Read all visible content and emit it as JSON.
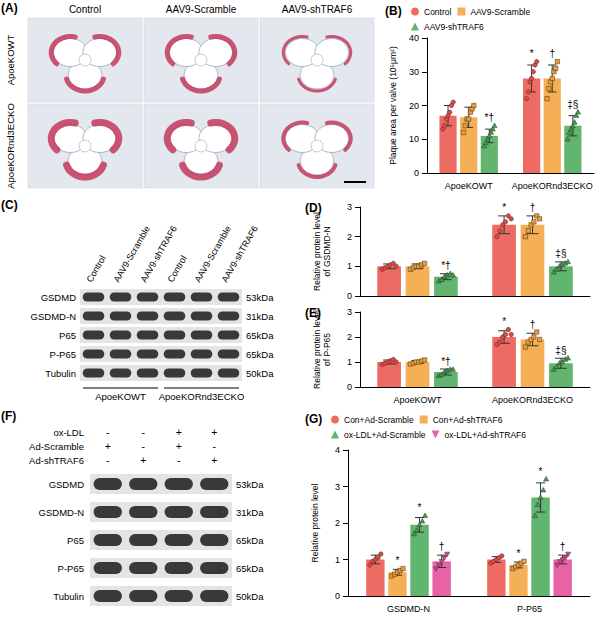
{
  "chart_data": [
    {
      "type": "bar",
      "title": "(B)",
      "y_label": "Plaque area per valve (10⁵μm²)",
      "categories": [
        "ApoeKOWT",
        "ApoeKORnd3ECKO"
      ],
      "series": [
        {
          "name": "Control",
          "color": "#e8463c",
          "marker": "circle",
          "values": [
            17,
            28
          ],
          "errors": [
            3,
            4
          ],
          "points": [
            [
              13,
              14,
              16,
              17,
              18,
              20,
              21
            ],
            [
              22,
              24,
              27,
              28,
              30,
              32,
              33
            ]
          ]
        },
        {
          "name": "AAV9-Scramble",
          "color": "#f39c2c",
          "marker": "square",
          "values": [
            16.5,
            28
          ],
          "errors": [
            3,
            4
          ],
          "points": [
            [
              12,
              14,
              16,
              16,
              18,
              19,
              20
            ],
            [
              22,
              25,
              27,
              28,
              30,
              31,
              33
            ]
          ]
        },
        {
          "name": "AAV9-shTRAF6",
          "color": "#3aa24a",
          "marker": "triangle",
          "values": [
            11,
            14
          ],
          "errors": [
            2,
            3
          ],
          "points": [
            [
              8,
              9,
              10,
              11,
              12,
              13,
              14
            ],
            [
              10,
              12,
              13,
              14,
              15,
              17,
              18
            ]
          ]
        }
      ],
      "annotations": [
        {
          "category": "ApoeKOWT",
          "series": "AAV9-shTRAF6",
          "text": "*†"
        },
        {
          "category": "ApoeKORnd3ECKO",
          "series": "Control",
          "text": "*"
        },
        {
          "category": "ApoeKORnd3ECKO",
          "series": "AAV9-Scramble",
          "text": "†"
        },
        {
          "category": "ApoeKORnd3ECKO",
          "series": "AAV9-shTRAF6",
          "text": "‡§"
        }
      ],
      "ylim": [
        0,
        40
      ],
      "yticks": [
        0,
        10,
        20,
        30,
        40
      ],
      "grid": false,
      "legend": "top"
    },
    {
      "type": "bar",
      "title": "(D)",
      "y_label": "Relative protein level\nof GSDMD-N",
      "categories": [
        "ApoeKOWT",
        "ApoeKORnd3ECKO"
      ],
      "series": [
        {
          "name": "Control",
          "color": "#e8463c",
          "marker": "circle",
          "values": [
            1.0,
            2.4
          ],
          "errors": [
            0.08,
            0.3
          ],
          "points": [
            [
              0.9,
              0.95,
              1.0,
              1.05,
              1.1,
              1.0
            ],
            [
              2.0,
              2.2,
              2.4,
              2.5,
              2.7,
              2.6
            ]
          ]
        },
        {
          "name": "AAV9-Scramble",
          "color": "#f39c2c",
          "marker": "square",
          "values": [
            1.0,
            2.4
          ],
          "errors": [
            0.08,
            0.3
          ],
          "points": [
            [
              0.9,
              0.95,
              1.0,
              1.0,
              1.05,
              1.1
            ],
            [
              2.0,
              2.2,
              2.4,
              2.5,
              2.7,
              2.6
            ]
          ]
        },
        {
          "name": "AAV9-shTRAF6",
          "color": "#3aa24a",
          "marker": "triangle",
          "values": [
            0.65,
            1.0
          ],
          "errors": [
            0.1,
            0.15
          ],
          "points": [
            [
              0.5,
              0.55,
              0.65,
              0.7,
              0.75,
              0.7
            ],
            [
              0.8,
              0.9,
              1.0,
              1.05,
              1.1,
              1.15
            ]
          ]
        }
      ],
      "annotations": [
        {
          "category": "ApoeKOWT",
          "series": "AAV9-shTRAF6",
          "text": "*†"
        },
        {
          "category": "ApoeKORnd3ECKO",
          "series": "Control",
          "text": "*"
        },
        {
          "category": "ApoeKORnd3ECKO",
          "series": "AAV9-Scramble",
          "text": "†"
        },
        {
          "category": "ApoeKORnd3ECKO",
          "series": "AAV9-shTRAF6",
          "text": "‡§"
        }
      ],
      "ylim": [
        0,
        3
      ],
      "yticks": [
        0,
        1,
        2,
        3
      ],
      "grid": false,
      "tick_labels": "y"
    },
    {
      "type": "bar",
      "title": "(E)",
      "y_label": "Relative protein level\nof P-P65",
      "categories": [
        "ApoeKOWT",
        "ApoeKORnd3ECKO"
      ],
      "series": [
        {
          "name": "Control",
          "color": "#e8463c",
          "marker": "circle",
          "values": [
            1.0,
            2.0
          ],
          "errors": [
            0.08,
            0.25
          ],
          "points": [
            [
              0.9,
              0.95,
              1.0,
              1.05,
              1.1,
              1.0
            ],
            [
              1.7,
              1.8,
              2.0,
              2.1,
              2.3,
              2.1
            ]
          ]
        },
        {
          "name": "AAV9-Scramble",
          "color": "#f39c2c",
          "marker": "square",
          "values": [
            1.0,
            1.9
          ],
          "errors": [
            0.06,
            0.25
          ],
          "points": [
            [
              0.92,
              0.96,
              1.0,
              1.0,
              1.04,
              1.08
            ],
            [
              1.6,
              1.8,
              1.9,
              2.0,
              2.2,
              1.9
            ]
          ]
        },
        {
          "name": "AAV9-shTRAF6",
          "color": "#3aa24a",
          "marker": "triangle",
          "values": [
            0.6,
            0.95
          ],
          "errors": [
            0.12,
            0.2
          ],
          "points": [
            [
              0.45,
              0.5,
              0.6,
              0.65,
              0.7,
              0.7
            ],
            [
              0.7,
              0.8,
              0.95,
              1.0,
              1.1,
              1.15
            ]
          ]
        }
      ],
      "annotations": [
        {
          "category": "ApoeKOWT",
          "series": "AAV9-shTRAF6",
          "text": "*†"
        },
        {
          "category": "ApoeKORnd3ECKO",
          "series": "Control",
          "text": "*"
        },
        {
          "category": "ApoeKORnd3ECKO",
          "series": "AAV9-Scramble",
          "text": "†"
        },
        {
          "category": "ApoeKORnd3ECKO",
          "series": "AAV9-shTRAF6",
          "text": "‡§"
        }
      ],
      "ylim": [
        0,
        3
      ],
      "yticks": [
        0,
        1,
        2,
        3
      ],
      "grid": false
    },
    {
      "type": "bar",
      "title": "(G)",
      "y_label": "Relative protein level",
      "categories": [
        "GSDMD-N",
        "P-P65"
      ],
      "series": [
        {
          "name": "Con+Ad-Scramble",
          "color": "#e8463c",
          "marker": "circle",
          "values": [
            1.0,
            1.0
          ],
          "errors": [
            0.12,
            0.08
          ],
          "points": [
            [
              0.85,
              0.95,
              1.0,
              1.05,
              1.15
            ],
            [
              0.9,
              0.95,
              1.0,
              1.05,
              1.1
            ]
          ]
        },
        {
          "name": "Con+Ad-shTRAF6",
          "color": "#f39c2c",
          "marker": "square",
          "values": [
            0.65,
            0.85
          ],
          "errors": [
            0.08,
            0.08
          ],
          "points": [
            [
              0.55,
              0.6,
              0.65,
              0.7,
              0.75
            ],
            [
              0.75,
              0.8,
              0.85,
              0.9,
              0.95
            ]
          ]
        },
        {
          "name": "ox-LDL+Ad-Scramble",
          "color": "#3aa24a",
          "marker": "triangle",
          "values": [
            1.95,
            2.7
          ],
          "errors": [
            0.2,
            0.4
          ],
          "points": [
            [
              1.7,
              1.8,
              1.95,
              2.05,
              2.2
            ],
            [
              2.2,
              2.5,
              2.7,
              2.9,
              3.2
            ]
          ]
        },
        {
          "name": "ox-LDL+Ad-shTRAF6",
          "color": "#e23c8e",
          "marker": "triangle-down",
          "values": [
            0.95,
            1.0
          ],
          "errors": [
            0.17,
            0.12
          ],
          "points": [
            [
              0.75,
              0.85,
              0.95,
              1.05,
              1.15
            ],
            [
              0.85,
              0.95,
              1.0,
              1.05,
              1.15
            ]
          ]
        }
      ],
      "annotations": [
        {
          "category": "GSDMD-N",
          "series": "Con+Ad-shTRAF6",
          "text": "*"
        },
        {
          "category": "GSDMD-N",
          "series": "ox-LDL+Ad-Scramble",
          "text": "*"
        },
        {
          "category": "GSDMD-N",
          "series": "ox-LDL+Ad-shTRAF6",
          "text": "†"
        },
        {
          "category": "P-P65",
          "series": "Con+Ad-shTRAF6",
          "text": "*"
        },
        {
          "category": "P-P65",
          "series": "ox-LDL+Ad-Scramble",
          "text": "*"
        },
        {
          "category": "P-P65",
          "series": "ox-LDL+Ad-shTRAF6",
          "text": "†"
        }
      ],
      "ylim": [
        0,
        4
      ],
      "yticks": [
        0,
        1,
        2,
        3,
        4
      ],
      "grid": false,
      "legend": "top"
    }
  ],
  "panel_a": {
    "label": "(A)",
    "columns": [
      "Control",
      "AAV9-Scramble",
      "AAV9-shTRAF6"
    ],
    "rows": [
      "ApoeKOWT",
      "ApoeKORnd3ECKO"
    ]
  },
  "panel_c": {
    "label": "(C)",
    "lanes": [
      "Control",
      "AAV9-Scramble",
      "AAV9-shTRAF6",
      "Control",
      "AAV9-Scramble",
      "AAV9-shTRAF6"
    ],
    "groups": [
      "ApoeKOWT",
      "ApoeKORnd3ECKO"
    ],
    "bands": [
      {
        "protein": "GSDMD",
        "size": "53kDa"
      },
      {
        "protein": "GSDMD-N",
        "size": "31kDa"
      },
      {
        "protein": "P65",
        "size": "65kDa"
      },
      {
        "protein": "P-P65",
        "size": "65kDa"
      },
      {
        "protein": "Tubulin",
        "size": "50kDa"
      }
    ]
  },
  "panel_f": {
    "label": "(F)",
    "conditions": [
      {
        "name": "ox-LDL",
        "signs": [
          "-",
          "-",
          "+",
          "+"
        ]
      },
      {
        "name": "Ad-Scramble",
        "signs": [
          "+",
          "-",
          "+",
          "-"
        ]
      },
      {
        "name": "Ad-shTRAF6",
        "signs": [
          "-",
          "+",
          "-",
          "+"
        ]
      }
    ],
    "bands": [
      {
        "protein": "GSDMD",
        "size": "53kDa"
      },
      {
        "protein": "GSDMD-N",
        "size": "31kDa"
      },
      {
        "protein": "P65",
        "size": "65kDa"
      },
      {
        "protein": "P-P65",
        "size": "65kDa"
      },
      {
        "protein": "Tubulin",
        "size": "50kDa"
      }
    ]
  }
}
